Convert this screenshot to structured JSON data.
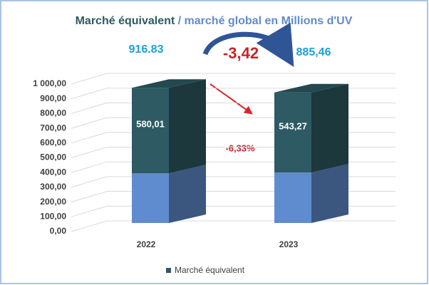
{
  "chart_data": {
    "type": "bar3d_stacked",
    "title": {
      "part1": "Marché équivalent",
      "separator": " / ",
      "part2": "marché global en Millions d'UV"
    },
    "categories": [
      "2022",
      "2023"
    ],
    "series": [
      {
        "color": "#5f8cce",
        "values": [
          336.82,
          342.19
        ]
      },
      {
        "name": "Marché équivalent",
        "color": "#2d5a63",
        "values": [
          580.01,
          543.27
        ],
        "value_labels": [
          "580,01",
          "543,27"
        ]
      }
    ],
    "total_labels": [
      "916.83",
      "885,46"
    ],
    "annotations": {
      "difference": "-3,42",
      "percent_change": "-6,33%"
    },
    "ylim": [
      0,
      1000
    ],
    "yticks": [
      {
        "value": 0,
        "label": "0,00"
      },
      {
        "value": 100,
        "label": "100,00"
      },
      {
        "value": 200,
        "label": "200,00"
      },
      {
        "value": 300,
        "label": "300,00"
      },
      {
        "value": 400,
        "label": "400,00"
      },
      {
        "value": 500,
        "label": "500,00"
      },
      {
        "value": 600,
        "label": "600,00"
      },
      {
        "value": 700,
        "label": "700,00"
      },
      {
        "value": 800,
        "label": "800,00"
      },
      {
        "value": 900,
        "label": "900,00"
      },
      {
        "value": 1000,
        "label": "1 000,00"
      }
    ],
    "grid": true
  }
}
